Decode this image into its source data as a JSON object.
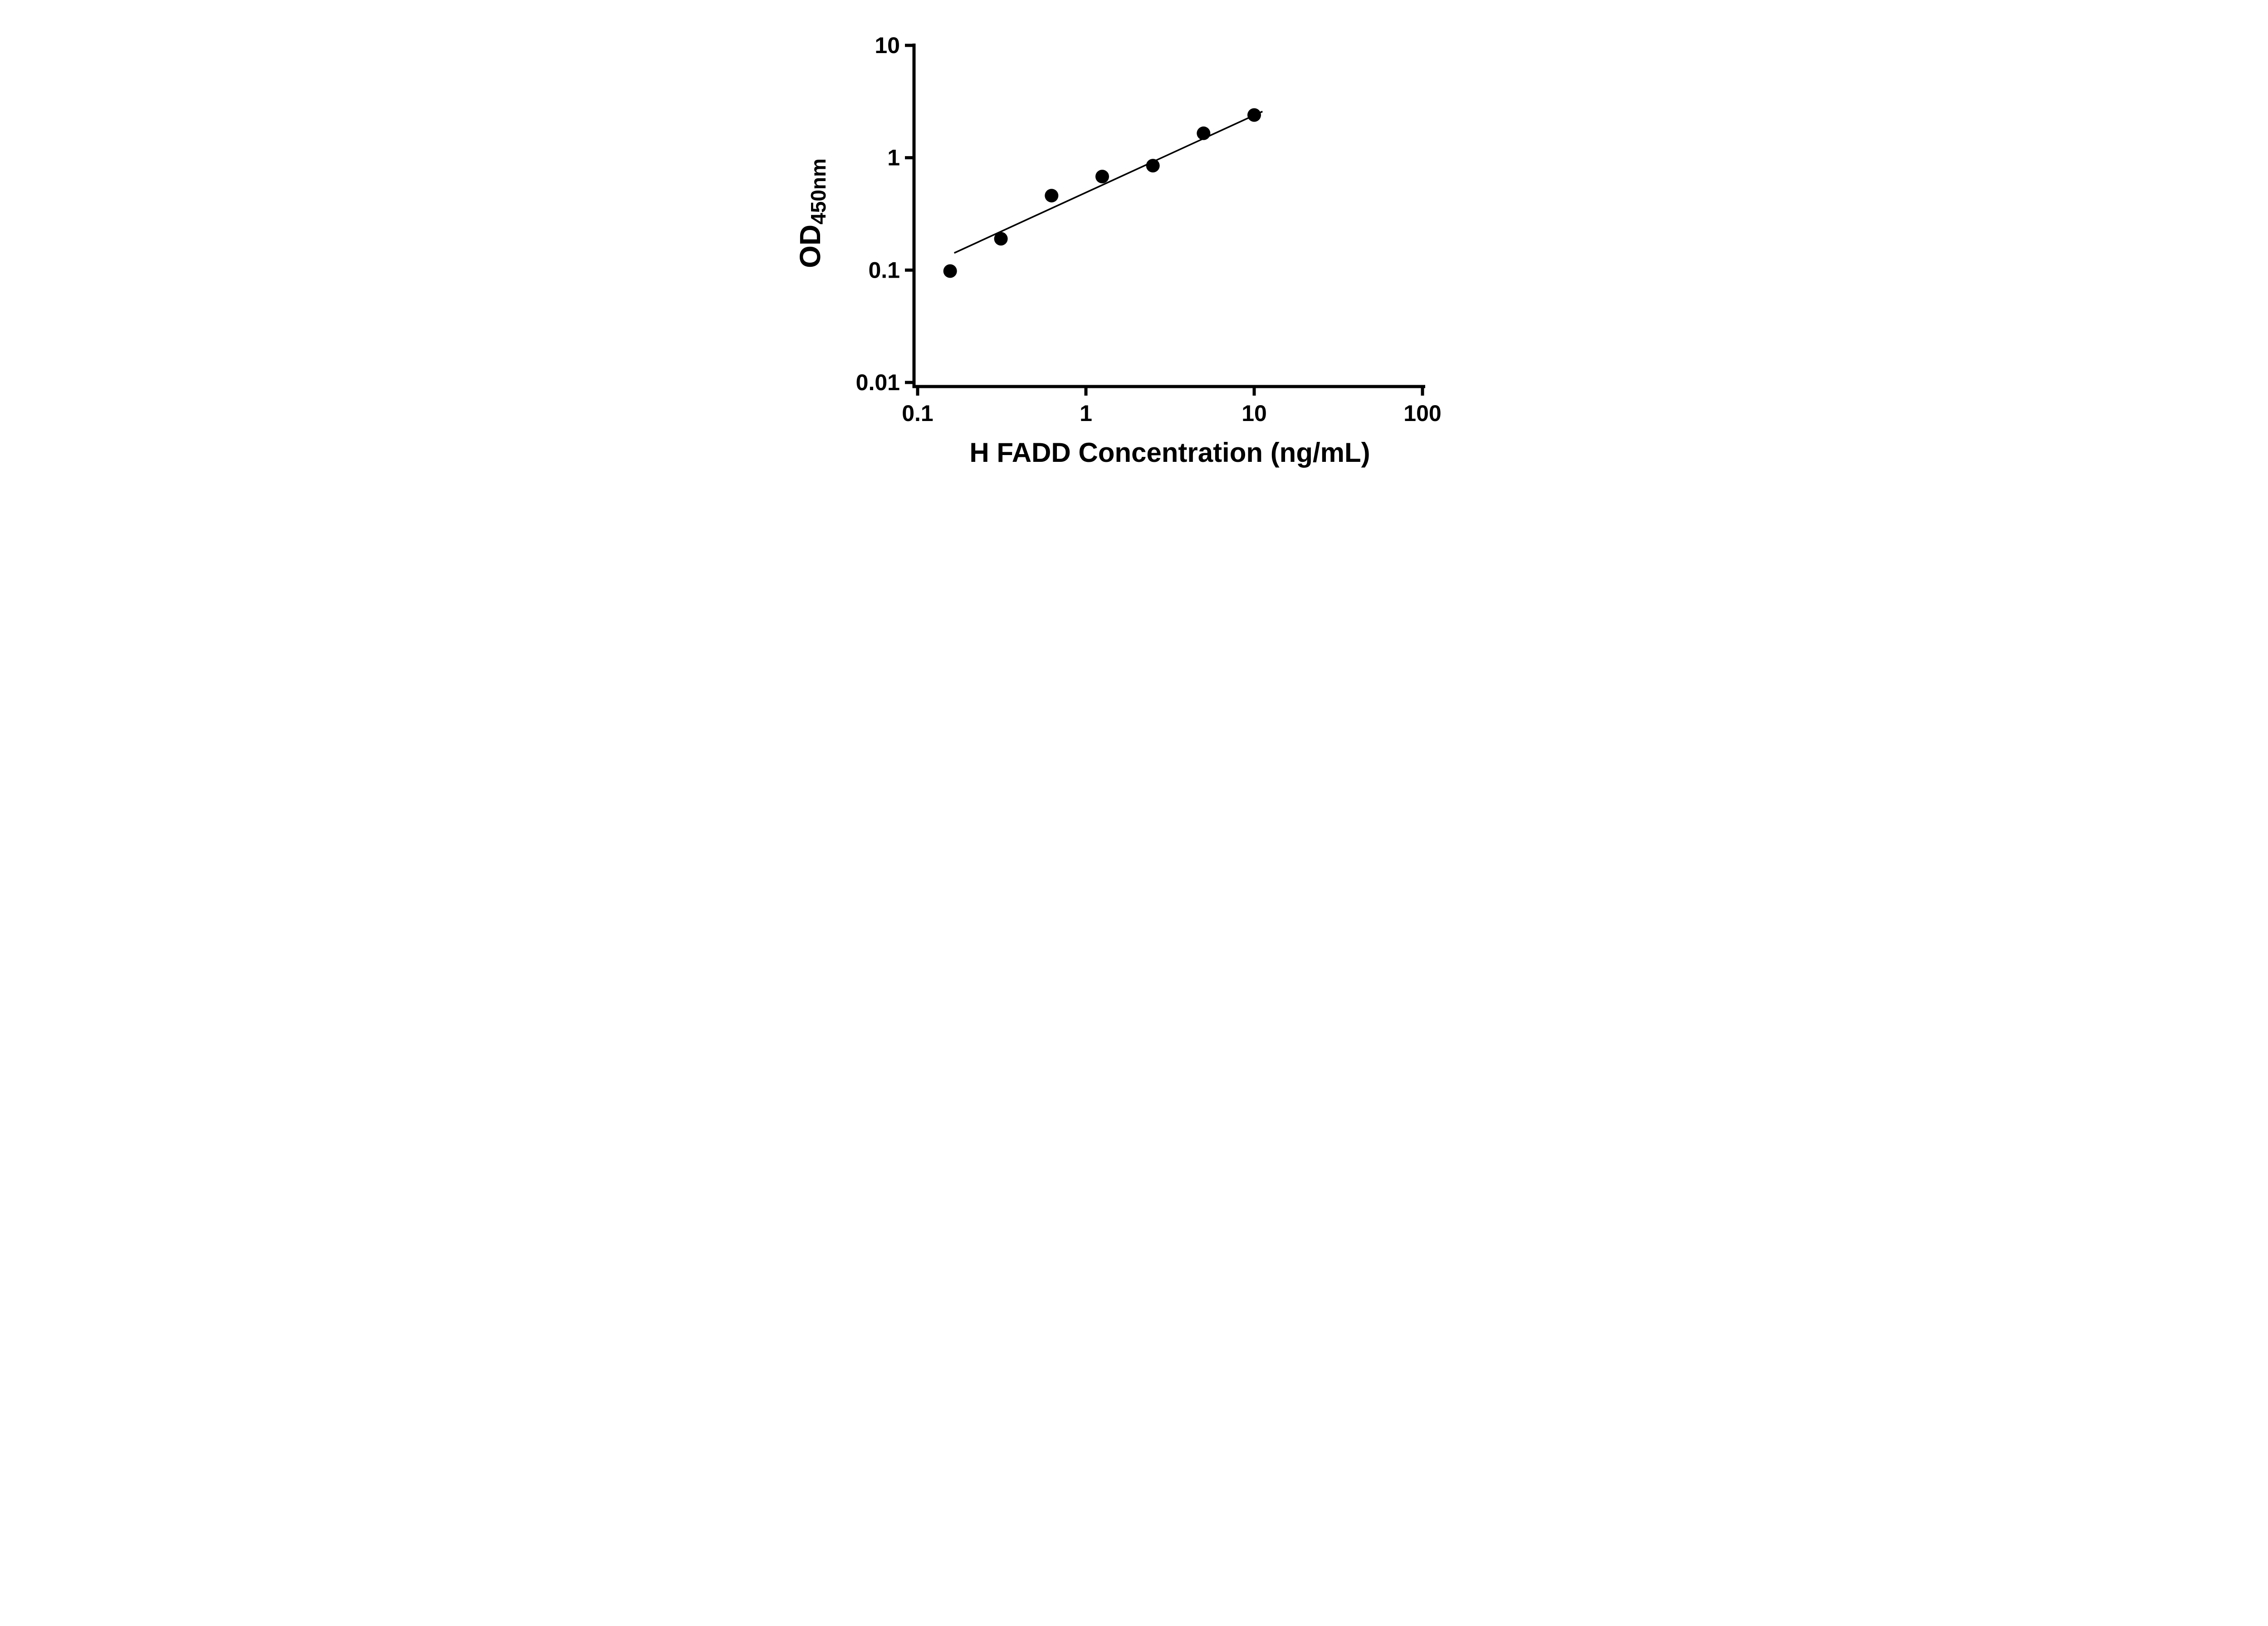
{
  "chart_data": {
    "type": "scatter",
    "title": "",
    "xlabel": "H FADD Concentration (ng/mL)",
    "ylabel": "OD450nm",
    "ylabel_base": "OD",
    "ylabel_sub": "450nm",
    "x_scale": "log",
    "y_scale": "log",
    "xlim": [
      0.1,
      100
    ],
    "ylim": [
      0.01,
      10
    ],
    "x_ticks": [
      0.1,
      1,
      10,
      100
    ],
    "x_tick_labels": [
      "0.1",
      "1",
      "10",
      "100"
    ],
    "y_ticks": [
      10,
      1,
      0.1,
      0.01
    ],
    "y_tick_labels": [
      "10",
      "1",
      "0.1",
      "0.01"
    ],
    "grid": false,
    "legend": "none",
    "series": [
      {
        "name": "standard-points",
        "type": "scatter",
        "x": [
          0.156,
          0.3125,
          0.625,
          1.25,
          2.5,
          5,
          10
        ],
        "y": [
          0.098,
          0.19,
          0.46,
          0.68,
          0.85,
          1.65,
          2.4
        ]
      },
      {
        "name": "fit-line",
        "type": "line",
        "x": [
          0.165,
          11.2
        ],
        "y": [
          0.142,
          2.58
        ]
      }
    ],
    "colors": {
      "point": "#000000",
      "line": "#000000",
      "axis": "#000000",
      "background": "#ffffff"
    }
  }
}
